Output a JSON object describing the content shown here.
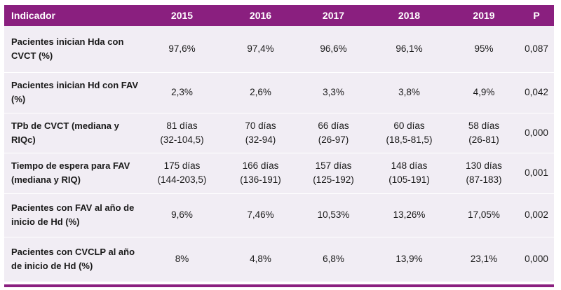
{
  "header": {
    "indicator": "Indicador",
    "years": [
      "2015",
      "2016",
      "2017",
      "2018",
      "2019"
    ],
    "p": "P"
  },
  "rows": [
    {
      "label": [
        "Pacientes inician Hda con",
        "CVCT (%)"
      ],
      "values": [
        [
          "97,6%"
        ],
        [
          "97,4%"
        ],
        [
          "96,6%"
        ],
        [
          "96,1%"
        ],
        [
          "95%"
        ]
      ],
      "p": "0,087"
    },
    {
      "label": [
        "Pacientes inician Hd con FAV",
        "(%)"
      ],
      "values": [
        [
          "2,3%"
        ],
        [
          "2,6%"
        ],
        [
          "3,3%"
        ],
        [
          "3,8%"
        ],
        [
          "4,9%"
        ]
      ],
      "p": "0,042"
    },
    {
      "label": [
        "TPb de CVCT (mediana y",
        "RIQc)"
      ],
      "values": [
        [
          "81 días",
          "(32-104,5)"
        ],
        [
          "70 días",
          "(32-94)"
        ],
        [
          "66 días",
          "(26-97)"
        ],
        [
          "60 días",
          "(18,5-81,5)"
        ],
        [
          "58 días",
          "(26-81)"
        ]
      ],
      "p": "0,000"
    },
    {
      "label": [
        "Tiempo de espera para FAV",
        "(mediana y RIQ)"
      ],
      "values": [
        [
          "175 días",
          "(144-203,5)"
        ],
        [
          "166 días",
          "(136-191)"
        ],
        [
          "157 días",
          "(125-192)"
        ],
        [
          "148 días",
          "(105-191)"
        ],
        [
          "130 días",
          "(87-183)"
        ]
      ],
      "p": "0,001"
    },
    {
      "label": [
        "Pacientes con FAV al año de",
        "inicio de Hd (%)"
      ],
      "values": [
        [
          "9,6%"
        ],
        [
          "7,46%"
        ],
        [
          "10,53%"
        ],
        [
          "13,26%"
        ],
        [
          "17,05%"
        ]
      ],
      "p": "0,002"
    },
    {
      "label": [
        "Pacientes con CVCLP al año",
        "de inicio de Hd (%)"
      ],
      "values": [
        [
          "8%"
        ],
        [
          "4,8%"
        ],
        [
          "6,8%"
        ],
        [
          "13,9%"
        ],
        [
          "23,1%"
        ]
      ],
      "p": "0,000"
    }
  ],
  "colors": {
    "header_bg": "#8a1f7f",
    "row_bg": "#f1edf4"
  }
}
